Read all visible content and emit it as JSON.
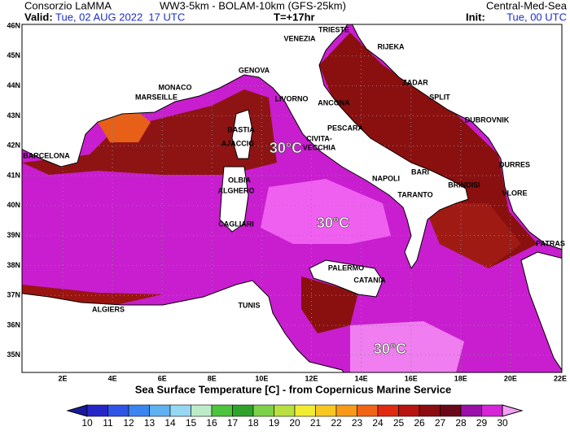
{
  "header": {
    "producer": "Consorzio LaMMA",
    "model": "WW3-5km - BOLAM-10km (GFS-25km)",
    "domain": "Central-Med-Sea",
    "valid_label": "Valid:",
    "valid_value": "Tue, 02 AUG 2022  17 UTC",
    "lead": "T=+17hr",
    "init_label": "Init:",
    "init_value": "Tue, 00 UTC"
  },
  "map": {
    "lat_labels": [
      {
        "value": 46,
        "label": "46N"
      },
      {
        "value": 45,
        "label": "45N"
      },
      {
        "value": 44,
        "label": "44N"
      },
      {
        "value": 43,
        "label": "43N"
      },
      {
        "value": 42,
        "label": "42N"
      },
      {
        "value": 41,
        "label": "41N"
      },
      {
        "value": 40,
        "label": "40N"
      },
      {
        "value": 39,
        "label": "39N"
      },
      {
        "value": 38,
        "label": "38N"
      },
      {
        "value": 37,
        "label": "37N"
      },
      {
        "value": 36,
        "label": "36N"
      },
      {
        "value": 35,
        "label": "35N"
      }
    ],
    "lon_labels": [
      {
        "value": 2,
        "label": "2E"
      },
      {
        "value": 4,
        "label": "4E"
      },
      {
        "value": 6,
        "label": "6E"
      },
      {
        "value": 8,
        "label": "8E"
      },
      {
        "value": 10,
        "label": "10E"
      },
      {
        "value": 12,
        "label": "12E"
      },
      {
        "value": 14,
        "label": "14E"
      },
      {
        "value": 16,
        "label": "16E"
      },
      {
        "value": 18,
        "label": "18E"
      },
      {
        "value": 20,
        "label": "20E"
      },
      {
        "value": 22,
        "label": "22E"
      }
    ],
    "cities": [
      "TRIESTE",
      "VENEZIA",
      "RIJEKA",
      "GENOVA",
      "MONACO",
      "MARSEILLE",
      "LIVORNO",
      "ANCONA",
      "ZADAR",
      "SPLIT",
      "DUBROVNIK",
      "BASTIA",
      "AJACCIO",
      "PESCARA",
      "CIVITA-",
      "VECCHIA",
      "BARCELONA",
      "BARI",
      "DURRES",
      "OLBIA",
      "NAPOLI",
      "ALGHERO",
      "BRINDISI",
      "TARANTO",
      "VLORE",
      "CAGLIARI",
      "PATRAS",
      "PALERMO",
      "CATANIA",
      "ALGIERS",
      "TUNIS"
    ],
    "temp_labels": [
      "30°C",
      "30°C",
      "30°C"
    ],
    "caption": "Sea Surface Temperature [C] - from Copernicus Marine Service"
  },
  "colorbar": {
    "ticks": [
      10,
      11,
      12,
      13,
      14,
      15,
      16,
      17,
      18,
      19,
      20,
      21,
      22,
      23,
      24,
      25,
      26,
      27,
      28,
      29,
      30
    ],
    "colors": [
      "#1a1a9a",
      "#2626c8",
      "#2f55e6",
      "#3a86f0",
      "#5fb2f2",
      "#96d8f4",
      "#bdebc8",
      "#4cc43c",
      "#2ea32a",
      "#7ed248",
      "#b8e040",
      "#f0ec30",
      "#f8c820",
      "#f89a18",
      "#f06414",
      "#e02a10",
      "#b81410",
      "#8c0c10",
      "#6a0818",
      "#9a10a8",
      "#d624d8",
      "#f4a0f4"
    ]
  }
}
